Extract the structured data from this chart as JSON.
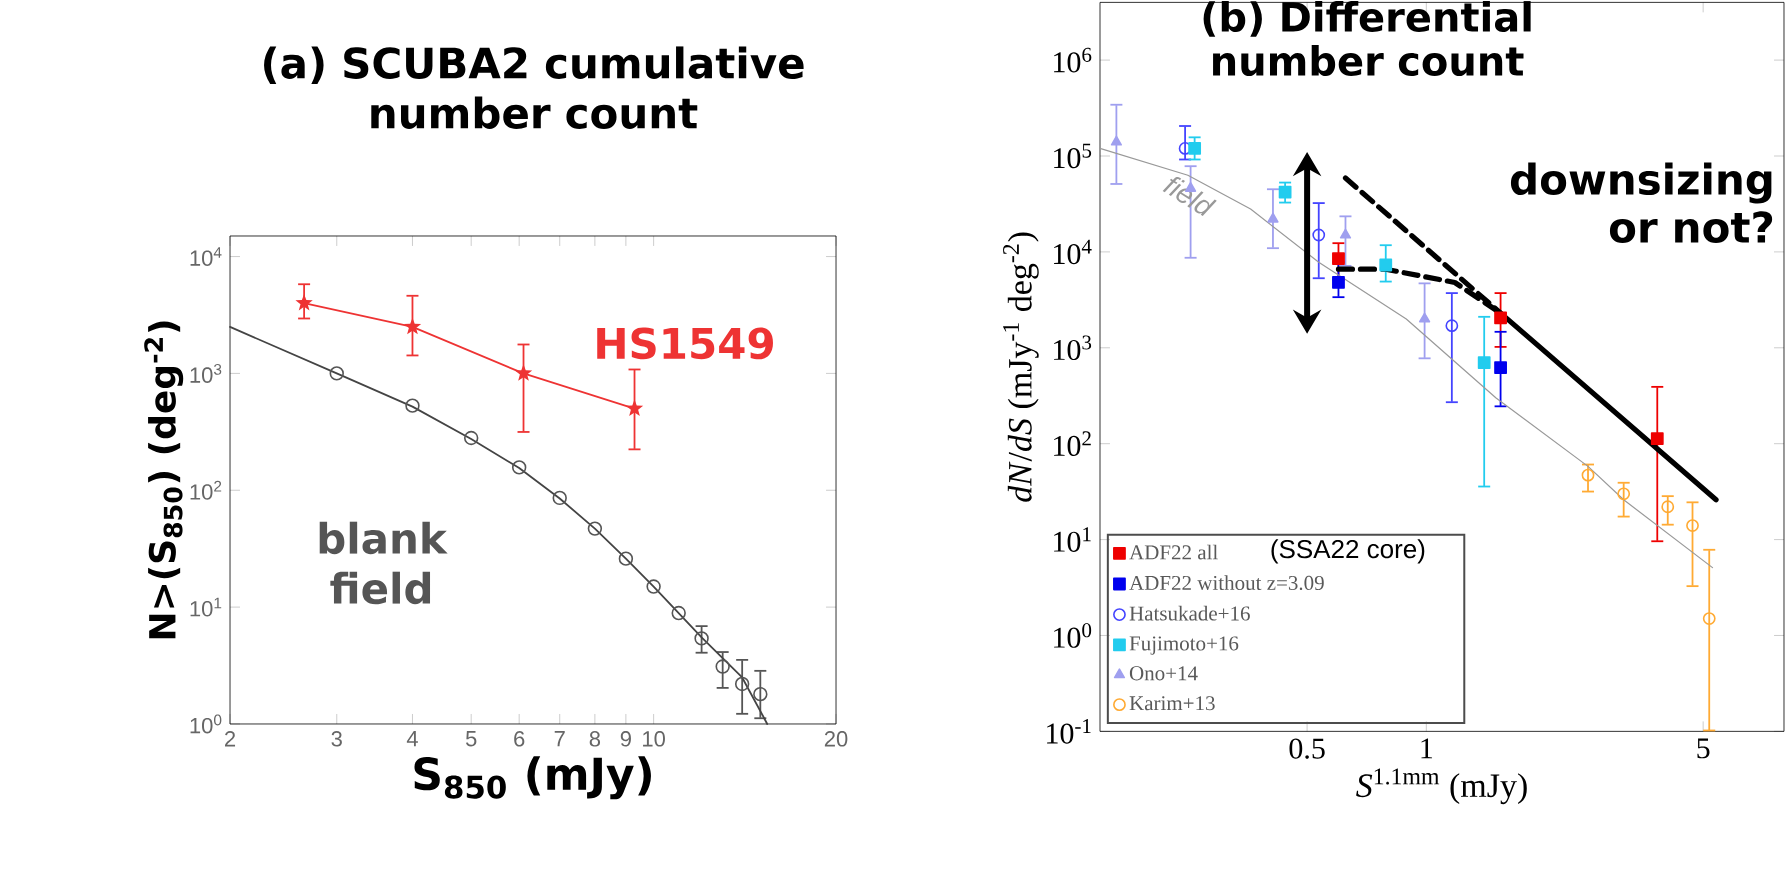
{
  "chart_data": [
    {
      "type": "scatter",
      "title": "(a) SCUBA2 cumulative number count",
      "xlabel": "S$_{850}$ (mJy)",
      "ylabel": "N>(S$_{850}$) (deg$^{-2}$)",
      "log": "xy",
      "xlim": [
        2,
        20
      ],
      "ylim": [
        1,
        15000
      ],
      "xticks": [
        2,
        3,
        4,
        5,
        6,
        7,
        8,
        9,
        10,
        20
      ],
      "yticks": [
        {
          "value": 1,
          "label": "10$^{0}$"
        },
        {
          "value": 10,
          "label": "10$^{1}$"
        },
        {
          "value": 100,
          "label": "10$^{2}$"
        },
        {
          "value": 1000,
          "label": "10$^{3}$"
        },
        {
          "value": 10000,
          "label": "10$^{4}$"
        }
      ],
      "series": [
        {
          "name": "HS1549",
          "type": "line",
          "marker": "star",
          "color": "#ee3333",
          "x": [
            2.65,
            4.0,
            6.1,
            9.3
          ],
          "values": [
            4000,
            2500,
            1000,
            500
          ],
          "errors": [
            [
              2900,
              5900
            ],
            [
              1400,
              4700
            ],
            [
              310,
              1800
            ],
            [
              220,
              1100
            ]
          ]
        },
        {
          "name": "blank field",
          "type": "scatter",
          "marker": "circle",
          "color": "#555555",
          "x": [
            3,
            4,
            5,
            6,
            7,
            8,
            9,
            10,
            11,
            12,
            13,
            14,
            15
          ],
          "values": [
            1000,
            530,
            280,
            157,
            86,
            47,
            26,
            15,
            8.9,
            5.4,
            3.1,
            2.2,
            1.8
          ],
          "errors": [
            null,
            null,
            null,
            null,
            null,
            null,
            null,
            null,
            null,
            [
              4.0,
              7.0
            ],
            [
              2.0,
              4.2
            ],
            [
              1.2,
              3.6
            ],
            [
              1.1,
              2.9
            ]
          ]
        },
        {
          "type": "line",
          "marker": "none",
          "color": "#444444",
          "x": [
            2,
            3,
            4,
            5,
            6,
            7,
            8,
            9,
            10,
            12,
            14,
            15.4
          ],
          "values": [
            2500,
            1000,
            520,
            275,
            155,
            85,
            47,
            26,
            15,
            5.5,
            2.5,
            1
          ]
        }
      ]
    },
    {
      "type": "scatter",
      "title": "(b) Differential number count",
      "xlabel": "*S*$^{1.1mm}$ (mJy)",
      "ylabel": "*dN*/*dS* (mJy$^{-1}$ deg$^{-2}$)",
      "log": "xy",
      "xlim": [
        0.15,
        8
      ],
      "ylim": [
        0.1,
        4000000
      ],
      "xticks": [
        0.5,
        1,
        5
      ],
      "yticks": [
        {
          "value": 0.1,
          "label": "10$^{-1}$"
        },
        {
          "value": 1,
          "label": "10$^{0}$"
        },
        {
          "value": 10,
          "label": "10$^{1}$"
        },
        {
          "value": 100,
          "label": "10$^{2}$"
        },
        {
          "value": 1000,
          "label": "10$^{3}$"
        },
        {
          "value": 10000,
          "label": "10$^{4}$"
        },
        {
          "value": 100000,
          "label": "10$^{5}$"
        },
        {
          "value": 1000000,
          "label": "10$^{6}$"
        }
      ],
      "legend": "bottom left",
      "annotations": [
        "(SSA22 core)",
        "downsizing or not?"
      ],
      "series": [
        {
          "name": "ADF22 all",
          "marker": "square",
          "color": "#ee0000",
          "x": [
            0.6,
            1.54,
            3.83
          ],
          "values": [
            8500,
            2050,
            113
          ],
          "errors": [
            [
              5000,
              12600
            ],
            [
              1000,
              3800
            ],
            [
              9.4,
              400
            ]
          ]
        },
        {
          "name": "ADF22 without z=3.09",
          "marker": "square",
          "color": "#0000ee",
          "x": [
            0.6,
            1.54
          ],
          "values": [
            4800,
            620
          ],
          "errors": [
            [
              3300,
              8000
            ],
            [
              240,
              1500
            ]
          ]
        },
        {
          "name": "Hatsukade+16",
          "marker": "circle",
          "color": "#4444ff",
          "x": [
            0.246,
            0.535,
            1.16
          ],
          "values": [
            120000,
            15000,
            1700
          ],
          "errors": [
            [
              90000,
              210000
            ],
            [
              5200,
              33000
            ],
            [
              265,
              3800
            ]
          ]
        },
        {
          "name": "Fujimoto+16",
          "marker": "square",
          "color": "#22ccee",
          "x": [
            0.26,
            0.44,
            0.79,
            1.4
          ],
          "values": [
            120000,
            42000,
            7300,
            700
          ],
          "errors": [
            [
              90000,
              160000
            ],
            [
              32000,
              54000
            ],
            [
              4800,
              12000
            ],
            [
              35,
              2150
            ]
          ]
        },
        {
          "name": "Ono+14",
          "marker": "triangle",
          "color": "#9f9fef",
          "x": [
            0.165,
            0.254,
            0.41,
            0.625,
            0.99
          ],
          "values": [
            140000,
            46000,
            22000,
            15000,
            2000
          ],
          "errors": [
            [
              50000,
              350000
            ],
            [
              8500,
              80000
            ],
            [
              10700,
              46000
            ],
            [
              7000,
              24000
            ],
            [
              760,
              4800
            ]
          ]
        },
        {
          "name": "Karim+13",
          "marker": "circle",
          "color": "#ffaa33",
          "x": [
            2.56,
            3.15,
            4.07,
            4.7,
            5.18
          ],
          "values": [
            47,
            30,
            22,
            14,
            1.5
          ],
          "errors": [
            [
              31,
              62
            ],
            [
              17,
              40
            ],
            [
              14,
              29
            ],
            [
              3.2,
              25
            ],
            [
              0.1,
              8
            ]
          ]
        },
        {
          "name": "field",
          "type": "line",
          "marker": "none",
          "color": "#999999",
          "x": [
            0.15,
            0.25,
            0.36,
            0.535,
            0.89,
            1.5,
            2.56,
            3.15,
            5.28
          ],
          "values": [
            120000,
            63000,
            28000,
            7800,
            2000,
            300,
            58,
            26,
            5.1
          ]
        },
        {
          "type": "line",
          "marker": "none",
          "line_style": "solid",
          "color": "#000000",
          "x": [
            1.54,
            5.39
          ],
          "values": [
            2300,
            26
          ]
        },
        {
          "type": "line",
          "marker": "none",
          "line_style": "dashed",
          "color": "#000000",
          "x": [
            0.6,
            0.79,
            1.18,
            1.54
          ],
          "values": [
            6600,
            6600,
            4800,
            2300
          ]
        },
        {
          "type": "line",
          "marker": "none",
          "line_style": "dashed",
          "color": "#000000",
          "x": [
            0.625,
            1.54
          ],
          "values": [
            59000,
            2300
          ]
        }
      ]
    }
  ]
}
